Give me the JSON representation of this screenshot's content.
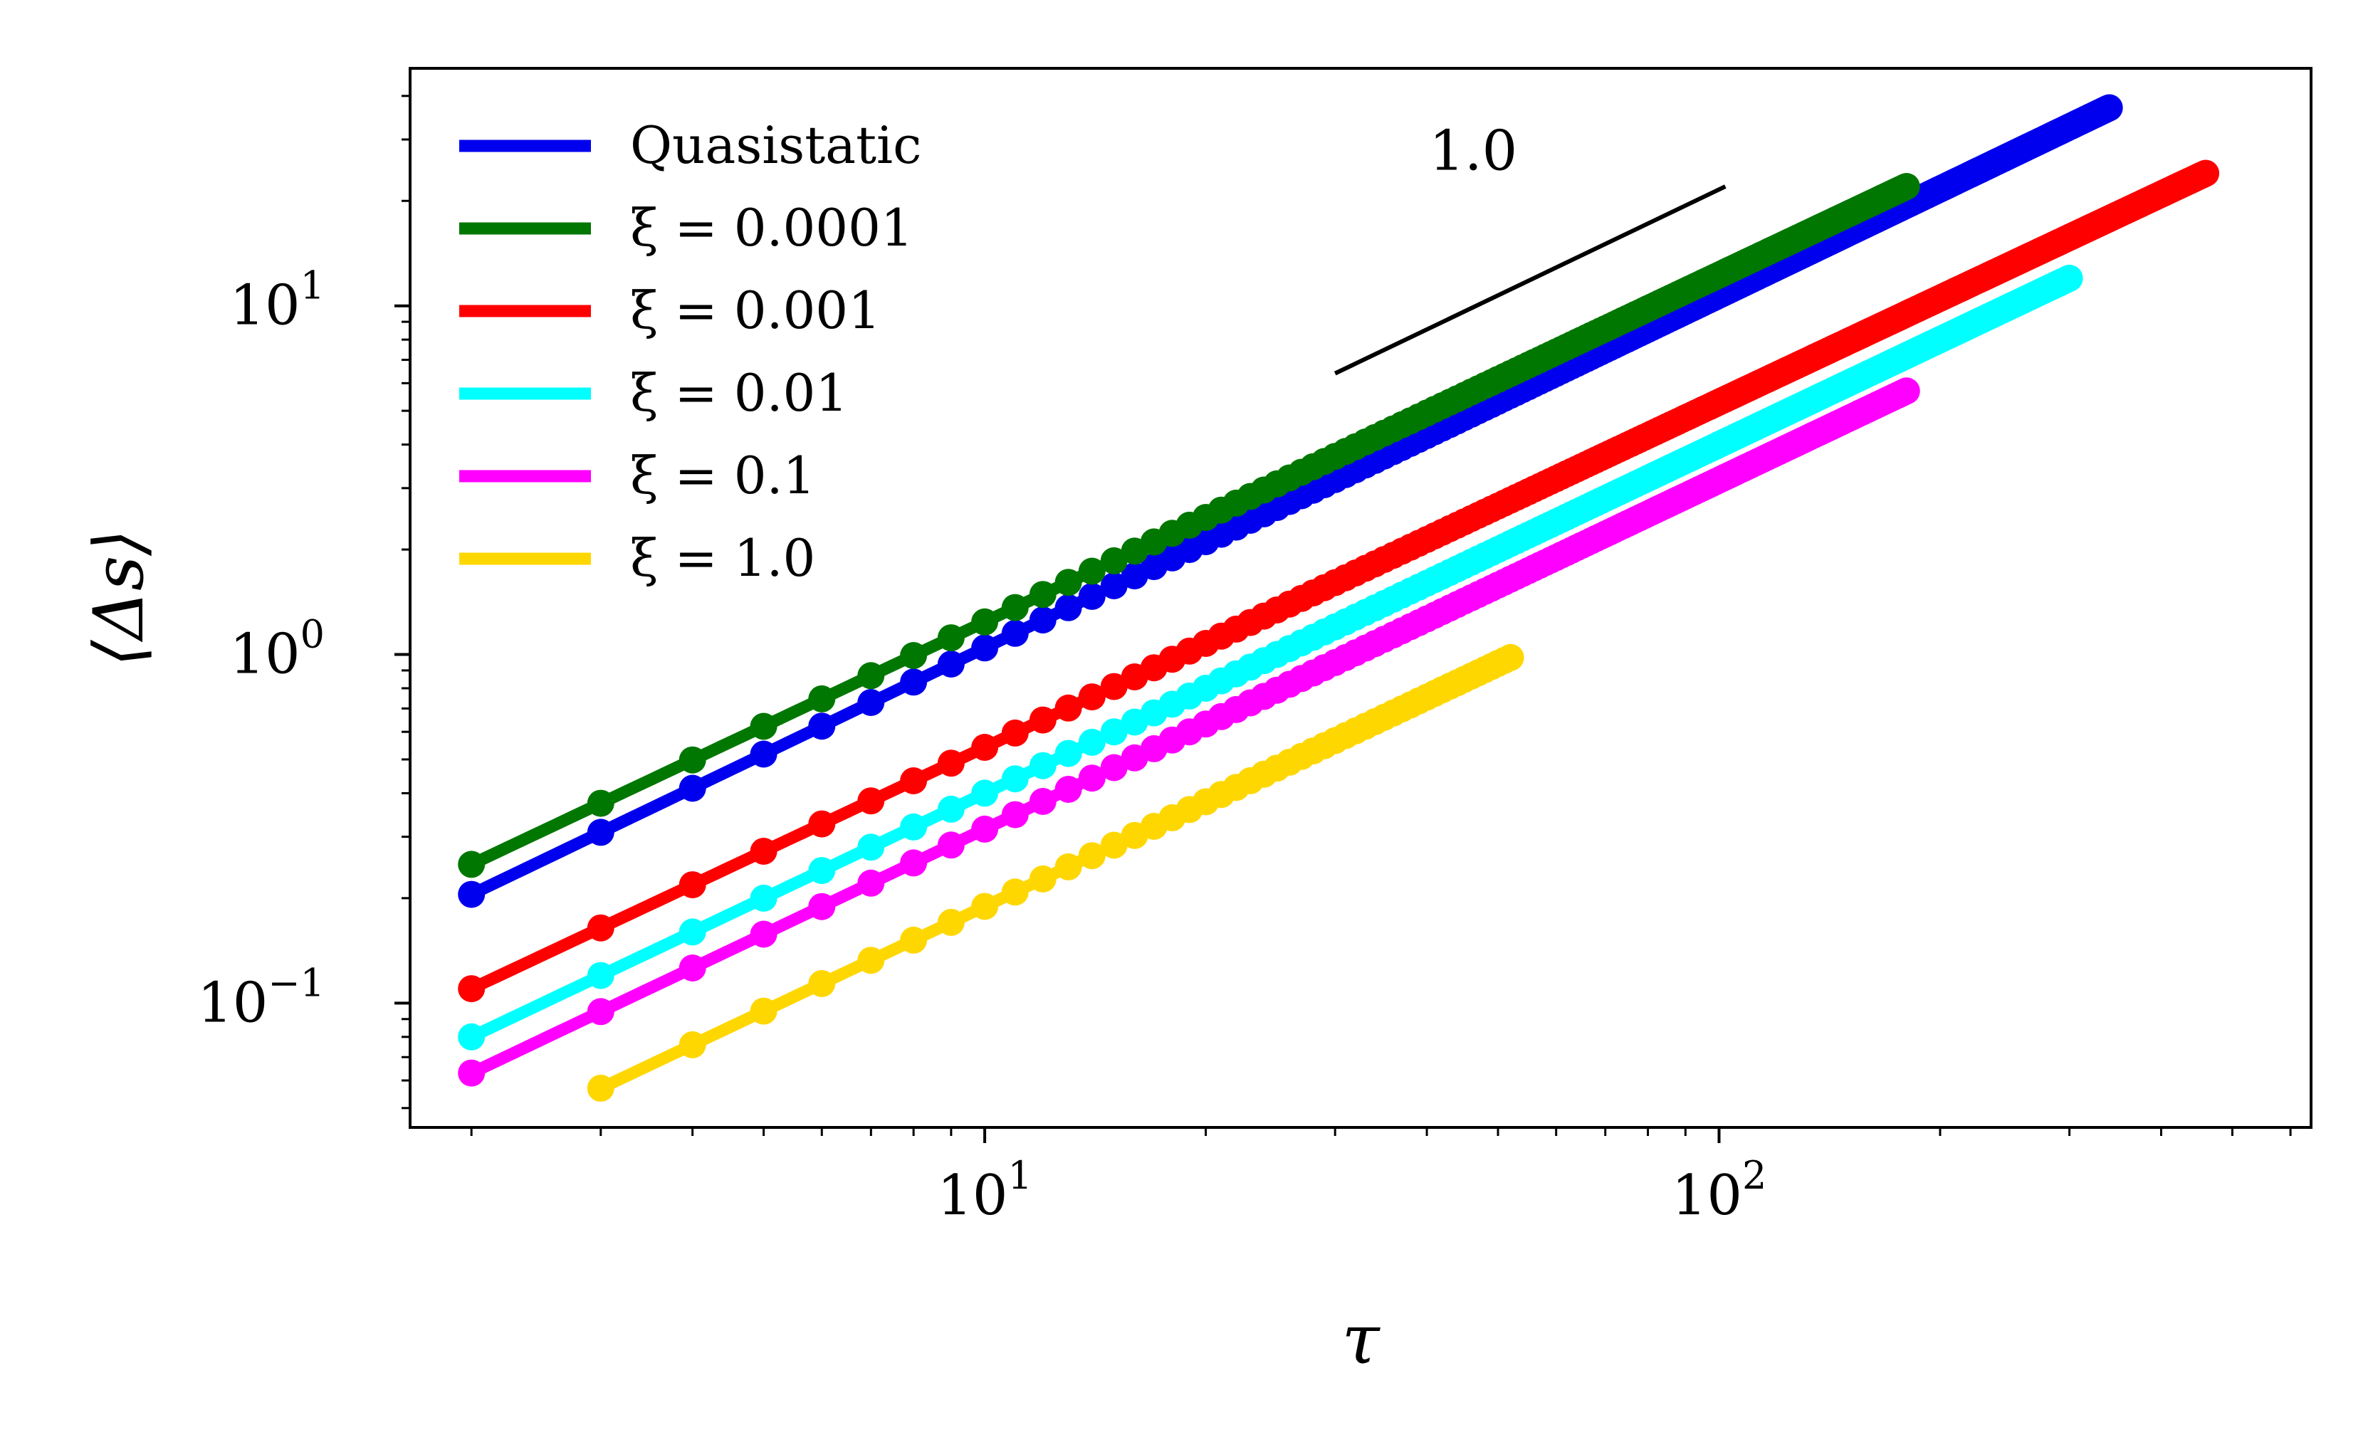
{
  "chart_data": {
    "type": "line",
    "xscale": "log",
    "yscale": "log",
    "xlim": [
      1.65,
      640
    ],
    "ylim": [
      0.044,
      48
    ],
    "xlabel": "τ",
    "ylabel": "⟨Δs⟩",
    "x_ticks": [
      {
        "value": 10,
        "base": "10",
        "exp": "1"
      },
      {
        "value": 100,
        "base": "10",
        "exp": "2"
      }
    ],
    "y_ticks": [
      {
        "value": 0.1,
        "base": "10",
        "exp": "−1"
      },
      {
        "value": 1,
        "base": "10",
        "exp": "0"
      },
      {
        "value": 10,
        "base": "10",
        "exp": "1"
      }
    ],
    "grid": false,
    "legend_position": "top-left",
    "series": [
      {
        "name": "Quasistatic",
        "color": "#0000ee",
        "x_start": 2,
        "x_end": 340,
        "y_start": 0.205,
        "y_end": 37
      },
      {
        "name": "ξ = 0.0001",
        "color": "#007700",
        "x_start": 2,
        "x_end": 180,
        "y_start": 0.25,
        "y_end": 22
      },
      {
        "name": "ξ = 0.001",
        "color": "#ff0000",
        "x_start": 2,
        "x_end": 460,
        "y_start": 0.11,
        "y_end": 24
      },
      {
        "name": "ξ = 0.01",
        "color": "#00ffff",
        "x_start": 2,
        "x_end": 300,
        "y_start": 0.08,
        "y_end": 12
      },
      {
        "name": "ξ = 0.1",
        "color": "#ff00ff",
        "x_start": 2,
        "x_end": 180,
        "y_start": 0.063,
        "y_end": 5.7
      },
      {
        "name": "ξ = 1.0",
        "color": "#ffd700",
        "x_start": 3,
        "x_end": 52,
        "y_start": 0.057,
        "y_end": 0.98
      }
    ],
    "slope_guide": {
      "label": "1.0",
      "x_start": 30,
      "x_end": 102,
      "y_start": 6.4,
      "y_end": 22
    }
  }
}
